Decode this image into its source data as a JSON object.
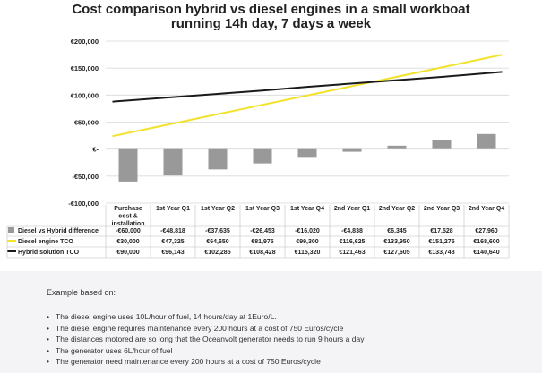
{
  "chart_data": {
    "type": "bar",
    "title": "Cost comparison hybrid vs diesel engines in a small workboat\nrunning 14h day, 7 days a week",
    "categories": [
      "Purchase\ncost &\ninstallation",
      "1st Year Q1",
      "1st Year Q2",
      "1st Year Q3",
      "1st Year Q4",
      "2nd Year Q1",
      "2nd Year Q2",
      "2nd Year Q3",
      "2nd Year Q4"
    ],
    "ylim": [
      -100000,
      200000
    ],
    "yticks": [
      -100000,
      -50000,
      0,
      50000,
      100000,
      150000,
      200000
    ],
    "ytick_labels": [
      "-€100,000",
      "-€50,000",
      "€-",
      "€50,000",
      "€100,000",
      "€150,000",
      "€200,000"
    ],
    "grid": true,
    "series": [
      {
        "name": "Diesel vs Hybrid difference",
        "kind": "bar",
        "color": "#999999",
        "values": [
          -60000,
          -48818,
          -37635,
          -26453,
          -16020,
          -4838,
          6345,
          17528,
          27960
        ],
        "labels": [
          "-€60,000",
          "-€48,818",
          "-€37,635",
          "-€26,453",
          "-€16,020",
          "-€4,838",
          "€6,345",
          "€17,528",
          "€27,960"
        ]
      },
      {
        "name": "Diesel engine TCO",
        "kind": "line",
        "color": "#f2e22a",
        "values": [
          30000,
          47325,
          64650,
          81975,
          99300,
          116625,
          133950,
          151275,
          168600
        ],
        "labels": [
          "€30,000",
          "€47,325",
          "€64,650",
          "€81,975",
          "€99,300",
          "€116,625",
          "€133,950",
          "€151,275",
          "€168,600"
        ]
      },
      {
        "name": "Hybrid solution TCO",
        "kind": "line",
        "color": "#1a1a1a",
        "values": [
          90000,
          96143,
          102285,
          108428,
          115320,
          121463,
          127605,
          133748,
          140640
        ],
        "labels": [
          "€90,000",
          "€96,143",
          "€102,285",
          "€108,428",
          "€115,320",
          "€121,463",
          "€127,605",
          "€133,748",
          "€140,640"
        ]
      }
    ]
  },
  "notes": {
    "heading": "Example based on:",
    "items": [
      "The diesel engine uses 10L/hour of fuel, 14 hours/day at 1Euro/L.",
      "The diesel engine requires maintenance every 200 hours at a cost of 750 Euros/cycle",
      "The distances motored are so long that the Oceanvolt generator needs to run 9 hours a day",
      "The generator uses 6L/hour of fuel",
      "The generator need maintenance every 200 hours at a cost of 750 Euros/cycle"
    ]
  }
}
